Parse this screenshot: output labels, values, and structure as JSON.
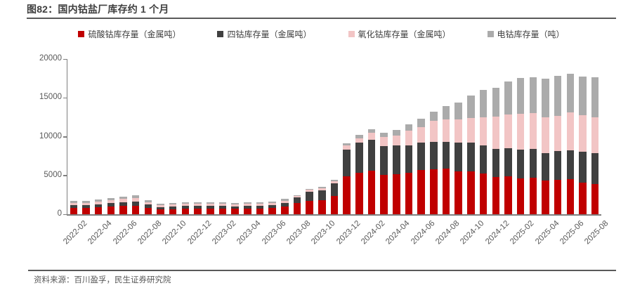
{
  "page": {
    "title": "图82：国内钴盐厂库存约 1 个月",
    "source": "资料来源：百川盈孚，民生证券研究院"
  },
  "chart_data": {
    "type": "bar",
    "stacked": true,
    "title": "国内钴盐厂库存约 1 个月",
    "xlabel": "",
    "ylabel": "",
    "ylim": [
      0,
      20000
    ],
    "y_ticks": [
      0,
      5000,
      10000,
      15000,
      20000
    ],
    "grid": false,
    "legend_position": "top",
    "x_tick_labels": [
      "2022-02",
      "2022-04",
      "2022-06",
      "2022-08",
      "2022-10",
      "2022-12",
      "2023-02",
      "2023-04",
      "2023-06",
      "2023-08",
      "2023-10",
      "2023-12",
      "2024-02",
      "2024-04",
      "2024-06",
      "2024-08",
      "2024-10",
      "2024-12",
      "2025-02",
      "2025-04",
      "2025-06",
      "2025-08"
    ],
    "categories": [
      "2022-02",
      "2022-03",
      "2022-04",
      "2022-05",
      "2022-06",
      "2022-07",
      "2022-08",
      "2022-09",
      "2022-10",
      "2022-11",
      "2022-12",
      "2023-01",
      "2023-02",
      "2023-03",
      "2023-04",
      "2023-05",
      "2023-06",
      "2023-07",
      "2023-08",
      "2023-09",
      "2023-10",
      "2023-11",
      "2023-12",
      "2024-01",
      "2024-02",
      "2024-03",
      "2024-04",
      "2024-05",
      "2024-06",
      "2024-07",
      "2024-08",
      "2024-09",
      "2024-10",
      "2024-11",
      "2024-12",
      "2025-01",
      "2025-02",
      "2025-03",
      "2025-04",
      "2025-05",
      "2025-06",
      "2025-07",
      "2025-08"
    ],
    "series": [
      {
        "name": "硫酸钴库存量（金属吨）",
        "color": "#c00000",
        "values": [
          810,
          800,
          880,
          980,
          1050,
          1130,
          850,
          640,
          680,
          750,
          720,
          720,
          740,
          710,
          730,
          740,
          800,
          1000,
          1420,
          1720,
          1840,
          2320,
          4900,
          5330,
          5580,
          5030,
          5120,
          5330,
          5670,
          5790,
          5880,
          5490,
          5520,
          5210,
          4760,
          4910,
          4610,
          4700,
          4310,
          4430,
          4520,
          4070,
          3890
        ]
      },
      {
        "name": "四钴库存量（金属吨）",
        "color": "#404040",
        "values": [
          370,
          370,
          400,
          450,
          480,
          520,
          390,
          290,
          310,
          340,
          330,
          330,
          340,
          320,
          330,
          340,
          360,
          450,
          730,
          1210,
          1240,
          1680,
          3450,
          3860,
          3980,
          3710,
          3770,
          3560,
          3520,
          3550,
          3460,
          3700,
          3670,
          3680,
          3620,
          3620,
          3680,
          3700,
          3580,
          3710,
          3710,
          3980,
          3980
        ]
      },
      {
        "name": "氧化钴库存量（金属吨）",
        "color": "#f2c5c5",
        "values": [
          270,
          280,
          330,
          400,
          420,
          460,
          340,
          250,
          270,
          290,
          280,
          280,
          290,
          270,
          280,
          290,
          300,
          300,
          180,
          220,
          280,
          250,
          480,
          600,
          900,
          1200,
          1210,
          1870,
          2050,
          2710,
          2860,
          3010,
          3170,
          3620,
          4210,
          4280,
          4670,
          4600,
          4560,
          4520,
          4880,
          4670,
          4640
        ]
      },
      {
        "name": "电钴库存量（吨）",
        "color": "#ababab",
        "values": [
          270,
          270,
          260,
          280,
          280,
          300,
          230,
          150,
          160,
          180,
          180,
          180,
          180,
          180,
          180,
          180,
          190,
          200,
          120,
          150,
          190,
          150,
          340,
          440,
          520,
          590,
          730,
          830,
          1100,
          1190,
          1740,
          2220,
          2910,
          3520,
          3680,
          4280,
          4580,
          4630,
          5030,
          5180,
          5030,
          5060,
          5120
        ]
      }
    ]
  }
}
